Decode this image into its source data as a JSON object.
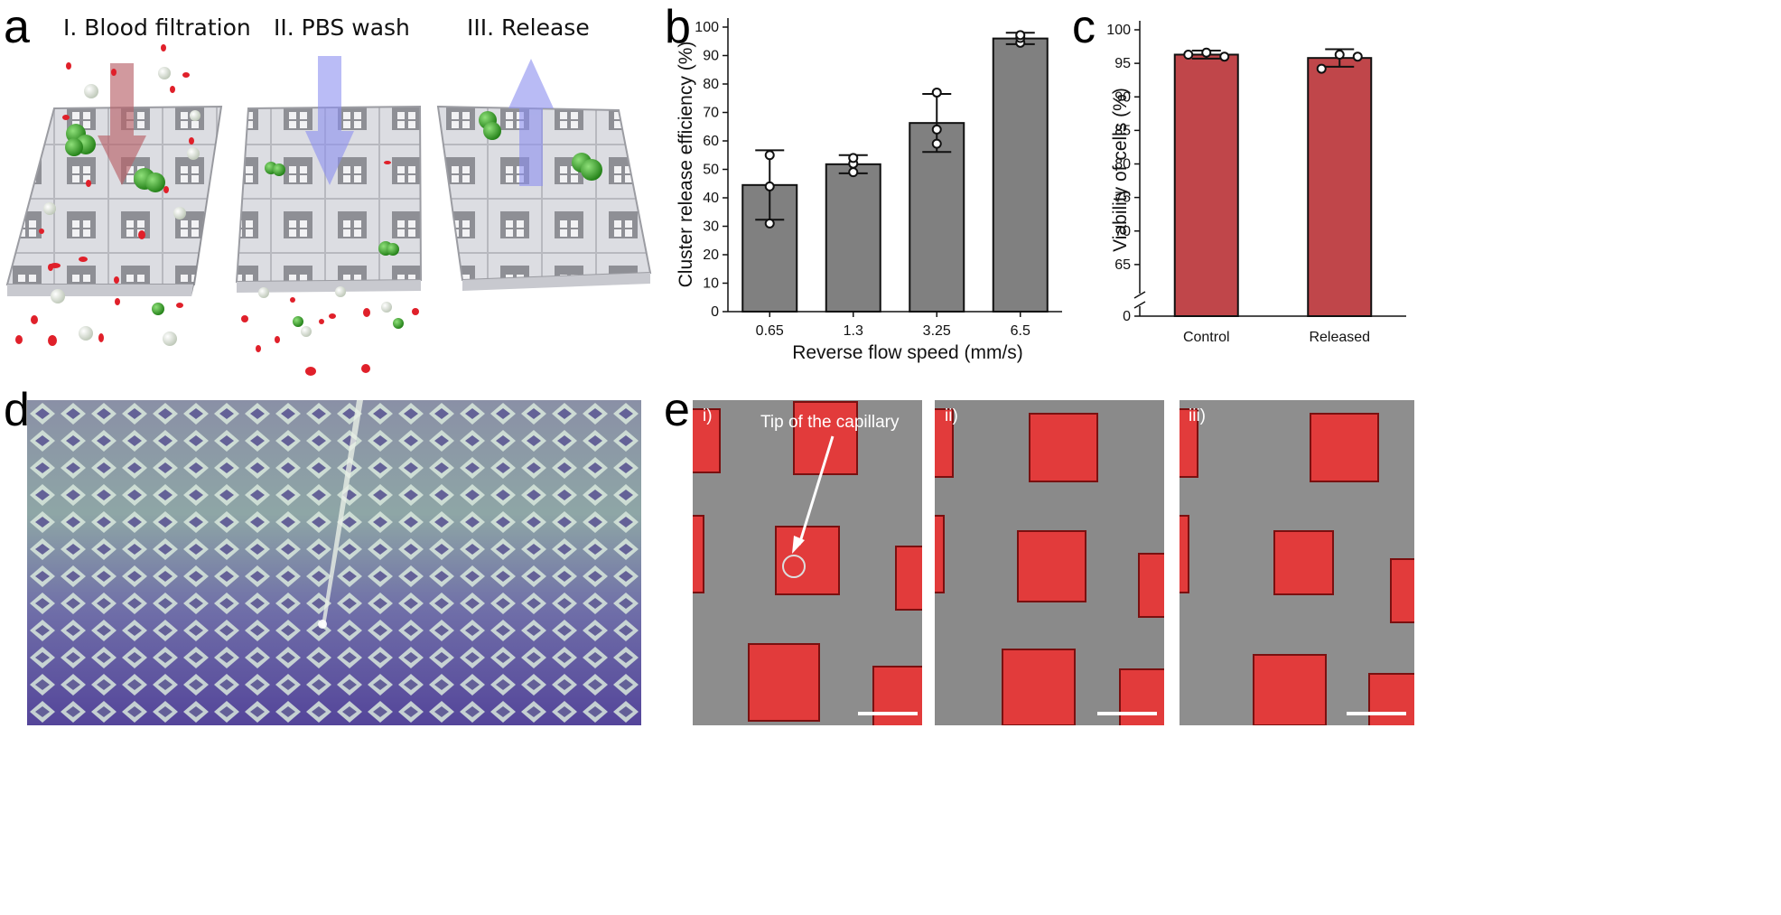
{
  "panel_labels": {
    "a": "a",
    "b": "b",
    "c": "c",
    "d": "d",
    "e": "e"
  },
  "panel_a": {
    "steps": [
      "I. Blood filtration",
      "II. PBS wash",
      "III. Release"
    ]
  },
  "panel_e": {
    "sublabels": [
      "i)",
      "ii)",
      "iii)"
    ],
    "annotation": "Tip of the capillary"
  },
  "colors": {
    "bar_b": "#808080",
    "bar_c": "#c0464a",
    "rbc": "#e0202a",
    "cluster": "#3aa52a",
    "arrow_down_red": "#b9636a",
    "arrow_blue": "#8c8ff0"
  },
  "chart_data": [
    {
      "id": "b",
      "type": "bar",
      "categories": [
        "0.65",
        "1.3",
        "3.25",
        "6.5"
      ],
      "values": [
        44.5,
        51.8,
        66.3,
        96.0
      ],
      "error": [
        12.2,
        3.2,
        10.2,
        2.0
      ],
      "points": [
        [
          31,
          44,
          55
        ],
        [
          49,
          52,
          54
        ],
        [
          59,
          64,
          77
        ],
        [
          94.5,
          96.2,
          97.2
        ]
      ],
      "title": "",
      "xlabel": "Reverse flow speed (mm/s)",
      "ylabel": "Cluster release efficiency (%)",
      "ylim": [
        0,
        100
      ],
      "yticks": [
        "0",
        "10",
        "20",
        "30",
        "40",
        "50",
        "60",
        "70",
        "80",
        "90",
        "100"
      ]
    },
    {
      "id": "c",
      "type": "bar",
      "categories": [
        "Control",
        "Released"
      ],
      "values": [
        96.3,
        95.8
      ],
      "error": [
        0.6,
        1.3
      ],
      "points": [
        [
          96.3,
          96.6,
          96.0
        ],
        [
          94.2,
          96.3,
          96.0
        ]
      ],
      "title": "",
      "xlabel": "",
      "ylabel": "Viability of cells (%)",
      "ylim": [
        60,
        100
      ],
      "axis_break": true,
      "yticks": [
        "0",
        "65",
        "70",
        "75",
        "80",
        "85",
        "90",
        "95",
        "100"
      ]
    }
  ]
}
